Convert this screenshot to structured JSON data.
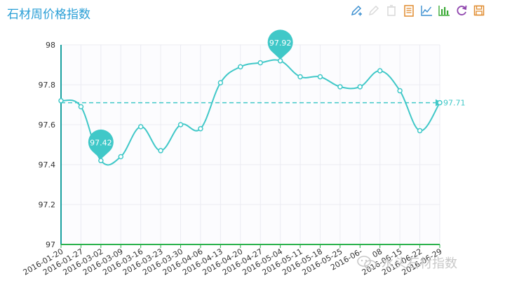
{
  "header": {
    "title": "石材周价格指数"
  },
  "toolbox": [
    {
      "name": "mark-icon",
      "color": "#3b8fd0"
    },
    {
      "name": "mark-undo-icon",
      "color": "#d9d9d9"
    },
    {
      "name": "mark-clear-icon",
      "color": "#d9d9d9"
    },
    {
      "name": "data-view-icon",
      "color": "#e08b2e"
    },
    {
      "name": "line-chart-icon",
      "color": "#3b8fd0"
    },
    {
      "name": "bar-chart-icon",
      "color": "#3aaa35"
    },
    {
      "name": "restore-icon",
      "color": "#8e44ad"
    },
    {
      "name": "save-image-icon",
      "color": "#e08b2e"
    }
  ],
  "watermark": {
    "text": "水头石材指数",
    "icon": "wechat-icon"
  },
  "colors": {
    "line": "#40c8c8",
    "axis_left": "#1aa0a0",
    "axis_bottom": "#2bb24c",
    "grid": "#ebebf2",
    "text": "#333333"
  },
  "chart_data": {
    "type": "line",
    "title": "石材周价格指数",
    "xlabel": "",
    "ylabel": "",
    "ylim": [
      97,
      98
    ],
    "yticks": [
      97,
      97.2,
      97.4,
      97.6,
      97.8,
      98
    ],
    "grid": true,
    "x": [
      "2016-01-20",
      "2016-01-27",
      "2016-03-02",
      "2016-03-09",
      "2016-03-16",
      "2016-03-23",
      "2016-03-30",
      "2016-04-06",
      "2016-04-13",
      "2016-04-20",
      "2016-04-27",
      "2016-05-04",
      "2016-05-11",
      "2016-05-18",
      "2016-05-25",
      "2016-06-01",
      "2016-06-08",
      "2016-06-15",
      "2016-06-22",
      "2016-06-29"
    ],
    "xtick_labels": [
      "2016-01-20",
      "2016-01-27",
      "2016-03-02",
      "2016-03-09",
      "2016-03-16",
      "2016-03-23",
      "2016-03-30",
      "2016-04-06",
      "2016-04-13",
      "2016-04-20",
      "2016-04-27",
      "2016-05-04",
      "2016-05-11",
      "2016-05-18",
      "2016-05-25",
      "2016-06-",
      "08",
      "2016-06-15",
      "2016-06-22",
      "2016-06-29"
    ],
    "series": [
      {
        "values": [
          97.72,
          97.69,
          97.42,
          97.44,
          97.59,
          97.47,
          97.6,
          97.58,
          97.81,
          97.89,
          97.91,
          97.92,
          97.84,
          97.84,
          97.79,
          97.79,
          97.87,
          97.77,
          97.57,
          97.71
        ]
      }
    ],
    "mark_points": [
      {
        "type": "min",
        "label": "97.42",
        "index": 2
      },
      {
        "type": "max",
        "label": "97.92",
        "index": 11
      }
    ],
    "mark_line": {
      "type": "average",
      "value": 97.71,
      "label": "97.71"
    }
  }
}
